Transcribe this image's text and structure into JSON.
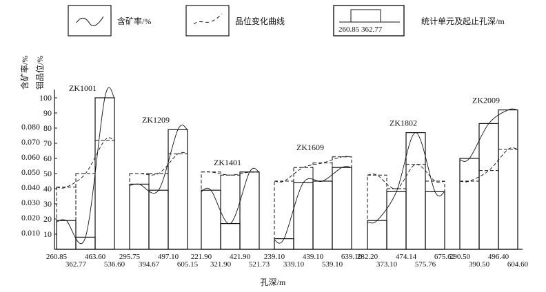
{
  "chart_data": {
    "type": "bar",
    "x_title": "孔深/m",
    "y_title_left": "含矿率/%",
    "y_title_right": "钼品位/%",
    "y_ticks": [
      10,
      20,
      30,
      40,
      50,
      60,
      70,
      80,
      90,
      100
    ],
    "grade_ticks": [
      "0.010",
      "0.020",
      "0.030",
      "0.040",
      "0.050",
      "0.060",
      "0.070",
      "0.080"
    ],
    "ylim": [
      0,
      100
    ],
    "legend": {
      "ore_rate": "含矿率/%",
      "grade_curve": "品位变化曲线",
      "unit": "统计单元及起止孔深/m",
      "unit_example": "260.85  362.77"
    },
    "holes": [
      {
        "name": "ZK1001",
        "depths": [
          "260.85",
          "362.77",
          "463.60",
          "536.60"
        ],
        "ore_rate": [
          19,
          8,
          100
        ],
        "grade_rate": [
          41,
          50,
          72
        ]
      },
      {
        "name": "ZK1209",
        "depths": [
          "295.75",
          "394.67",
          "497.10",
          "605.15"
        ],
        "ore_rate": [
          43,
          39,
          79
        ],
        "grade_rate": [
          50,
          50,
          63
        ]
      },
      {
        "name": "ZK1401",
        "depths": [
          "221.90",
          "321.90",
          "421.90",
          "521.73"
        ],
        "ore_rate": [
          39,
          17,
          51
        ],
        "grade_rate": [
          51,
          49,
          51
        ]
      },
      {
        "name": "ZK1609",
        "depths": [
          "239.10",
          "339.10",
          "439.10",
          "539.10",
          "639.10"
        ],
        "ore_rate": [
          7,
          44,
          45,
          54
        ],
        "grade_rate": [
          45,
          54,
          57,
          61
        ]
      },
      {
        "name": "ZK1802",
        "depths": [
          "282.20",
          "373.10",
          "474.14",
          "575.76",
          "675.62"
        ],
        "ore_rate": [
          19,
          38,
          77,
          38
        ],
        "grade_rate": [
          49,
          40,
          56,
          45
        ]
      },
      {
        "name": "ZK2009",
        "depths": [
          "290.50",
          "390.50",
          "496.40",
          "604.60"
        ],
        "ore_rate": [
          60,
          83,
          92
        ],
        "grade_rate": [
          45,
          52,
          66
        ]
      }
    ]
  }
}
